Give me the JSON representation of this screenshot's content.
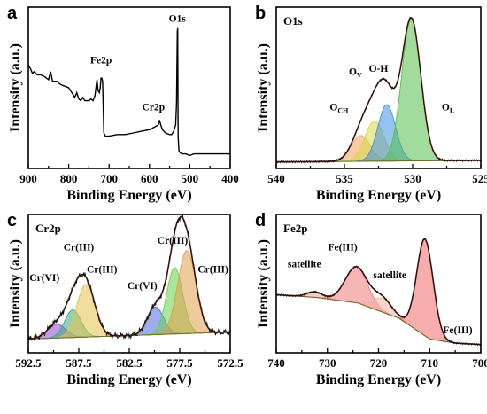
{
  "chart_data": [
    {
      "panel": "a",
      "type": "line",
      "title": "",
      "xlabel": "Binding Energy (eV)",
      "ylabel": "Intensity (a.u.)",
      "xlim": [
        900,
        400
      ],
      "x_reversed": true,
      "xticks": [
        "900",
        "800",
        "700",
        "600",
        "500",
        "400"
      ],
      "ylim": [
        0,
        1
      ],
      "annotations": [
        {
          "text": "Fe2p",
          "x": 720,
          "y": 0.65
        },
        {
          "text": "Cr2p",
          "x": 590,
          "y": 0.36
        },
        {
          "text": "O1s",
          "x": 531,
          "y": 0.91
        }
      ],
      "series": [
        {
          "color": "#000000",
          "x": [
            900,
            895,
            890,
            885,
            878,
            870,
            860,
            850,
            845,
            840,
            830,
            820,
            810,
            800,
            790,
            785,
            780,
            775,
            770,
            765,
            760,
            750,
            745,
            740,
            735,
            730,
            727,
            724,
            722,
            720,
            718,
            716,
            713,
            711,
            709,
            707,
            700,
            680,
            660,
            640,
            620,
            600,
            585,
            578,
            575,
            572,
            568,
            560,
            550,
            545,
            540,
            535,
            533,
            531,
            530,
            529,
            527,
            525,
            520,
            510,
            500,
            490,
            470,
            450,
            430,
            400
          ],
          "y": [
            0.64,
            0.62,
            0.59,
            0.6,
            0.58,
            0.58,
            0.57,
            0.55,
            0.6,
            0.54,
            0.54,
            0.52,
            0.51,
            0.5,
            0.46,
            0.44,
            0.47,
            0.43,
            0.42,
            0.44,
            0.42,
            0.42,
            0.43,
            0.42,
            0.45,
            0.55,
            0.48,
            0.47,
            0.5,
            0.56,
            0.56,
            0.54,
            0.22,
            0.21,
            0.2,
            0.2,
            0.2,
            0.21,
            0.21,
            0.22,
            0.23,
            0.24,
            0.26,
            0.27,
            0.3,
            0.27,
            0.24,
            0.22,
            0.21,
            0.21,
            0.23,
            0.27,
            0.4,
            0.85,
            0.87,
            0.2,
            0.11,
            0.1,
            0.09,
            0.09,
            0.08,
            0.09,
            0.09,
            0.09,
            0.09,
            0.09
          ]
        }
      ]
    },
    {
      "panel": "b",
      "type": "area",
      "title": "O1s",
      "xlabel": "Binding Energy (eV)",
      "ylabel": "Intensity (a.u.)",
      "xlim": [
        540,
        525
      ],
      "x_reversed": true,
      "xticks": [
        "540",
        "535",
        "530",
        "525"
      ],
      "ylim": [
        0,
        1
      ],
      "annotations": [
        {
          "text": "OV",
          "base": "O",
          "sub": "V",
          "x": 534.2,
          "y": 0.58
        },
        {
          "text": "O-H",
          "x": 532.5,
          "y": 0.6
        },
        {
          "text": "OCH",
          "base": "O",
          "sub": "CH",
          "x": 535.4,
          "y": 0.36
        },
        {
          "text": "OL",
          "base": "O",
          "sub": "L",
          "x": 527.4,
          "y": 0.36
        }
      ],
      "baseline": [
        [
          540,
          0.04
        ],
        [
          525,
          0.05
        ]
      ],
      "peaks": [
        {
          "name": "OCH",
          "center": 533.8,
          "height": 0.16,
          "width": 0.7,
          "color": "#f2a25c"
        },
        {
          "name": "OV",
          "center": 532.8,
          "height": 0.25,
          "width": 0.7,
          "color": "#d6d84a"
        },
        {
          "name": "O-H",
          "center": 531.9,
          "height": 0.35,
          "width": 0.65,
          "color": "#3f8fe0"
        },
        {
          "name": "OL",
          "center": 530.1,
          "height": 0.88,
          "width": 0.7,
          "color": "#54c04a"
        }
      ],
      "envelope_color": "#8b1e14"
    },
    {
      "panel": "c",
      "type": "area",
      "title": "Cr2p",
      "xlabel": "Binding Energy (eV)",
      "ylabel": "Intensity (a.u.)",
      "xlim": [
        592.5,
        572.5
      ],
      "x_reversed": true,
      "xticks": [
        "592.5",
        "587.5",
        "582.5",
        "577.5",
        "572.5"
      ],
      "ylim": [
        0,
        1
      ],
      "annotations": [
        {
          "text": "Cr(VI)",
          "x": 590.9,
          "y": 0.52
        },
        {
          "text": "Cr(III)",
          "x": 587.5,
          "y": 0.74
        },
        {
          "text": "Cr(III)",
          "x": 585.2,
          "y": 0.58
        },
        {
          "text": "Cr(VI)",
          "x": 581.2,
          "y": 0.46
        },
        {
          "text": "Cr(III)",
          "x": 578.2,
          "y": 0.79
        },
        {
          "text": "Cr(III)",
          "x": 574.2,
          "y": 0.58
        }
      ],
      "baseline": [
        [
          592.5,
          0.1
        ],
        [
          572.5,
          0.15
        ]
      ],
      "peaks": [
        {
          "name": "Cr(VI)",
          "center": 589.7,
          "height": 0.1,
          "width": 0.9,
          "color": "#8a4fd0"
        },
        {
          "name": "Cr(III)",
          "center": 588.1,
          "height": 0.2,
          "width": 0.8,
          "color": "#3aa982"
        },
        {
          "name": "Cr(III)",
          "center": 586.8,
          "height": 0.38,
          "width": 0.9,
          "color": "#e6c24a"
        },
        {
          "name": "Cr(VI)",
          "center": 579.9,
          "height": 0.2,
          "width": 0.8,
          "color": "#4a6be0"
        },
        {
          "name": "Cr(III)",
          "center": 578.0,
          "height": 0.48,
          "width": 0.8,
          "color": "#6ccf4a"
        },
        {
          "name": "Cr(III)",
          "center": 576.8,
          "height": 0.6,
          "width": 0.9,
          "color": "#e0a04a"
        }
      ],
      "envelope_color": "#6a1e12",
      "noisy": true
    },
    {
      "panel": "d",
      "type": "area",
      "title": "Fe2p",
      "xlabel": "Binding Energy (eV)",
      "ylabel": "Intensity (a.u.)",
      "xlim": [
        740,
        700
      ],
      "x_reversed": true,
      "xticks": [
        "740",
        "730",
        "720",
        "710",
        "700"
      ],
      "ylim": [
        0,
        1
      ],
      "annotations": [
        {
          "text": "satellite",
          "x": 734.5,
          "y": 0.62
        },
        {
          "text": "Fe(III)",
          "x": 727,
          "y": 0.74
        },
        {
          "text": "satellite",
          "x": 717.8,
          "y": 0.54
        },
        {
          "text": "Fe(III)",
          "x": 704.5,
          "y": 0.14
        }
      ],
      "baseline": [
        [
          740,
          0.42
        ],
        [
          732,
          0.4
        ],
        [
          724,
          0.36
        ],
        [
          716,
          0.25
        ],
        [
          710,
          0.1
        ],
        [
          705,
          0.07
        ],
        [
          700,
          0.06
        ]
      ],
      "peaks": [
        {
          "name": "satellite",
          "center": 732.5,
          "height": 0.04,
          "width": 1.5,
          "color": "#f4a0a0"
        },
        {
          "name": "Fe(III)",
          "center": 724.3,
          "height": 0.26,
          "width": 2.2,
          "color": "#f07a7a"
        },
        {
          "name": "satellite",
          "center": 719.2,
          "height": 0.1,
          "width": 1.8,
          "color": "#f4b0a0"
        },
        {
          "name": "Fe(III)",
          "center": 710.9,
          "height": 0.7,
          "width": 1.6,
          "color": "#ee6a6a"
        }
      ],
      "envelope_color": "#6a1e12"
    }
  ]
}
